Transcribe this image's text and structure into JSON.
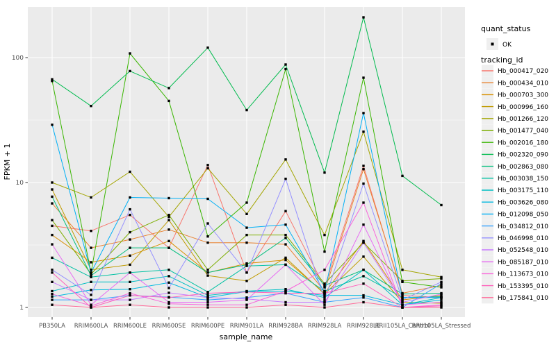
{
  "figure": {
    "background": "#FFFFFF",
    "panel_background": "#EBEBEB",
    "grid_major_color": "#FFFFFF",
    "grid_minor_color": "#F7F7F7",
    "axis_text_color": "#4D4D4D",
    "axis_title_color": "#000000",
    "tick_mark_color": "#333333",
    "point_color": "#000000",
    "legend_key_background": "#EFEFEF"
  },
  "axes": {
    "x_title": "sample_name",
    "y_title": "FPKM + 1",
    "y_tick_labels": [
      "1",
      "10",
      "100"
    ],
    "x_tick_labels": [
      "PB350LA",
      "RRIM600LA",
      "RRIM600LE",
      "RRIM600SE",
      "RRIM600PE",
      "RRIM901LA",
      "RRIM928BA",
      "RRIM928LA",
      "RRIM928LE",
      "RRII105LA_Control",
      "RRII105LA_Stressed"
    ]
  },
  "legend": {
    "quant_status_title": "quant_status",
    "quant_status_items": [
      {
        "label": "OK",
        "marker": "black-point"
      }
    ],
    "tracking_id_title": "tracking_id",
    "items": [
      {
        "label": "Hb_000417_020",
        "color": "#F8766D"
      },
      {
        "label": "Hb_000434_010",
        "color": "#EA8331"
      },
      {
        "label": "Hb_000703_300",
        "color": "#D89000"
      },
      {
        "label": "Hb_000996_160",
        "color": "#C09B00"
      },
      {
        "label": "Hb_001266_120",
        "color": "#A3A500"
      },
      {
        "label": "Hb_001477_040",
        "color": "#7CAE00"
      },
      {
        "label": "Hb_002016_180",
        "color": "#39B600"
      },
      {
        "label": "Hb_002320_090",
        "color": "#00BB4E"
      },
      {
        "label": "Hb_002863_080",
        "color": "#00BF7D"
      },
      {
        "label": "Hb_003038_150",
        "color": "#00C1A3"
      },
      {
        "label": "Hb_003175_110",
        "color": "#00BFC4"
      },
      {
        "label": "Hb_003626_080",
        "color": "#00BAE0"
      },
      {
        "label": "Hb_012098_050",
        "color": "#00B0F6"
      },
      {
        "label": "Hb_034812_010",
        "color": "#35A2FF"
      },
      {
        "label": "Hb_046998_010",
        "color": "#9590FF"
      },
      {
        "label": "Hb_052548_010",
        "color": "#C77CFF"
      },
      {
        "label": "Hb_085187_010",
        "color": "#E76BF3"
      },
      {
        "label": "Hb_113673_010",
        "color": "#FA62DB"
      },
      {
        "label": "Hb_153395_010",
        "color": "#FF62BC"
      },
      {
        "label": "Hb_175841_010",
        "color": "#FF6A98"
      }
    ]
  },
  "chart_data": {
    "type": "line",
    "title": "",
    "xlabel": "sample_name",
    "ylabel": "FPKM + 1",
    "y_scale": "log10",
    "ylim": [
      0.85,
      270
    ],
    "y_major_ticks": [
      1,
      10,
      100
    ],
    "y_minor_ticks": [
      3.162,
      31.62
    ],
    "grid": true,
    "legend_position": "right",
    "point_marker": "small-black-square",
    "quant_status_all_points": "OK",
    "categories": [
      "PB350LA",
      "RRIM600LA",
      "RRIM600LE",
      "RRIM600SE",
      "RRIM600PE",
      "RRIM901LA",
      "RRIM928BA",
      "RRIM928LA",
      "RRIM928LE",
      "RRII105LA_Control",
      "RRII105LA_Stressed"
    ],
    "series": [
      {
        "name": "Hb_000417_020",
        "color": "#F8766D",
        "values": [
          4.5,
          4.1,
          5.5,
          3.0,
          13.8,
          1.9,
          5.9,
          1.45,
          13.6,
          1.25,
          1.2
        ]
      },
      {
        "name": "Hb_000434_010",
        "color": "#EA8331",
        "values": [
          6.8,
          3.0,
          3.5,
          4.2,
          3.3,
          3.3,
          3.2,
          1.35,
          12.8,
          1.3,
          1.5
        ]
      },
      {
        "name": "Hb_000703_300",
        "color": "#D89000",
        "values": [
          3.8,
          2.3,
          2.6,
          3.4,
          1.9,
          2.25,
          2.4,
          1.3,
          3.4,
          1.15,
          1.25
        ]
      },
      {
        "name": "Hb_000996_160",
        "color": "#C09B00",
        "values": [
          8.8,
          2.0,
          2.2,
          5.0,
          1.8,
          1.63,
          2.5,
          1.28,
          2.55,
          1.1,
          1.08
        ]
      },
      {
        "name": "Hb_001266_120",
        "color": "#A3A500",
        "values": [
          10,
          7.6,
          12.2,
          5.3,
          13,
          5.6,
          15.3,
          3.8,
          25.5,
          2.0,
          1.75
        ]
      },
      {
        "name": "Hb_001477_040",
        "color": "#7CAE00",
        "values": [
          5.0,
          1.85,
          4.0,
          5.5,
          2.0,
          3.8,
          3.8,
          1.55,
          3.3,
          1.63,
          1.7
        ]
      },
      {
        "name": "Hb_002016_180",
        "color": "#39B600",
        "values": [
          65,
          1.9,
          108,
          45,
          3.7,
          6.9,
          81,
          2.8,
          69,
          1.6,
          1.45
        ]
      },
      {
        "name": "Hb_002320_090",
        "color": "#00BB4E",
        "values": [
          67,
          41,
          78,
          57,
          120,
          38,
          88,
          12,
          210,
          11.3,
          6.6
        ]
      },
      {
        "name": "Hb_002863_080",
        "color": "#00BF7D",
        "values": [
          7.7,
          1.8,
          3.0,
          3.0,
          1.9,
          2.2,
          3.6,
          1.5,
          2.0,
          1.28,
          1.3
        ]
      },
      {
        "name": "Hb_003038_150",
        "color": "#00C1A3",
        "values": [
          2.5,
          1.75,
          1.9,
          2.0,
          1.33,
          2.15,
          2.2,
          1.35,
          1.78,
          1.2,
          1.22
        ]
      },
      {
        "name": "Hb_003175_110",
        "color": "#00BFC4",
        "values": [
          1.35,
          1.6,
          1.6,
          1.78,
          1.25,
          1.35,
          1.4,
          1.2,
          2.0,
          1.05,
          1.2
        ]
      },
      {
        "name": "Hb_003626_080",
        "color": "#00BAE0",
        "values": [
          1.22,
          1.38,
          1.4,
          1.58,
          1.2,
          1.34,
          1.35,
          1.25,
          1.25,
          1.05,
          1.15
        ]
      },
      {
        "name": "Hb_012098_050",
        "color": "#00B0F6",
        "values": [
          29,
          1.9,
          7.6,
          7.5,
          7.4,
          4.35,
          4.6,
          1.32,
          36,
          1.2,
          1.2
        ]
      },
      {
        "name": "Hb_034812_010",
        "color": "#35A2FF",
        "values": [
          1.15,
          1.15,
          1.25,
          1.21,
          1.15,
          1.2,
          1.3,
          1.1,
          1.2,
          1.0,
          1.55
        ]
      },
      {
        "name": "Hb_046998_010",
        "color": "#9590FF",
        "values": [
          2.0,
          1.26,
          6.1,
          1.43,
          4.7,
          1.9,
          10.7,
          1.15,
          9.8,
          1.15,
          1.6
        ]
      },
      {
        "name": "Hb_052548_010",
        "color": "#C77CFF",
        "values": [
          1.6,
          1.15,
          1.15,
          1.31,
          1.2,
          1.17,
          1.1,
          1.1,
          3.3,
          1.1,
          1.28
        ]
      },
      {
        "name": "Hb_085187_010",
        "color": "#E76BF3",
        "values": [
          3.2,
          1.05,
          1.9,
          1.1,
          1.1,
          1.15,
          2.2,
          1.05,
          4.6,
          1.05,
          1.1
        ]
      },
      {
        "name": "Hb_113673_010",
        "color": "#FA62DB",
        "values": [
          1.28,
          1.03,
          1.3,
          1.07,
          1.05,
          1.05,
          1.35,
          2.0,
          6.9,
          1.0,
          1.05
        ]
      },
      {
        "name": "Hb_153395_010",
        "color": "#FF62BC",
        "values": [
          1.9,
          1.0,
          1.25,
          1.2,
          1.3,
          1.33,
          1.3,
          1.3,
          1.55,
          1.0,
          1.03
        ]
      },
      {
        "name": "Hb_175841_010",
        "color": "#FF6A98",
        "values": [
          1.05,
          1.0,
          1.05,
          1.0,
          1.0,
          1.0,
          1.05,
          1.0,
          1.1,
          1.0,
          1.0
        ]
      }
    ]
  }
}
